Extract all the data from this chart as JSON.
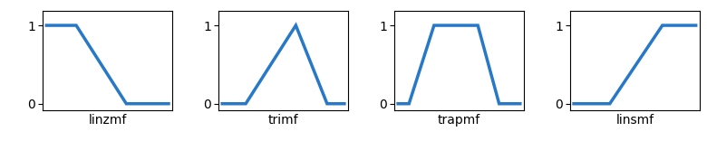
{
  "subplots": [
    {
      "label": "linzmf",
      "x": [
        0.0,
        0.25,
        0.65,
        1.0
      ],
      "y": [
        1,
        1,
        0,
        0
      ]
    },
    {
      "label": "trimf",
      "x": [
        0.0,
        0.2,
        0.6,
        0.85,
        1.0
      ],
      "y": [
        0,
        0,
        1,
        0,
        0
      ]
    },
    {
      "label": "trapmf",
      "x": [
        0.0,
        0.1,
        0.3,
        0.65,
        0.82,
        1.0
      ],
      "y": [
        0,
        0,
        1,
        1,
        0,
        0
      ]
    },
    {
      "label": "linsmf",
      "x": [
        0.0,
        0.3,
        0.72,
        1.0
      ],
      "y": [
        0,
        0,
        1,
        1
      ]
    }
  ],
  "line_color": "#2878c8",
  "line_width": 2.5,
  "yticks": [
    0,
    1
  ],
  "ylim": [
    -0.08,
    1.18
  ],
  "xlim": [
    -0.02,
    1.02
  ],
  "label_fontsize": 10,
  "tick_fontsize": 10,
  "background_color": "#ffffff"
}
